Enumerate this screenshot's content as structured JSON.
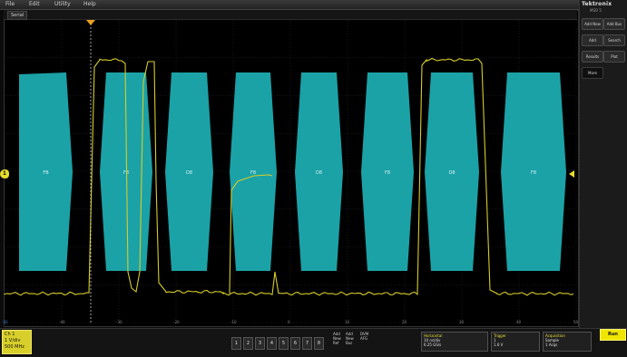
{
  "menubar": {
    "items": [
      {
        "label": "File"
      },
      {
        "label": "Edit"
      },
      {
        "label": "Utility"
      },
      {
        "label": "Help"
      }
    ]
  },
  "tab": {
    "label": "Serial"
  },
  "brand": {
    "name": "Tektronix",
    "model": "MSO 5"
  },
  "right_panel": {
    "buttons": [
      {
        "label": "Add New Math"
      },
      {
        "label": "Add Bus"
      },
      {
        "label": "Add Measure"
      },
      {
        "label": "Search"
      },
      {
        "label": "Results Table"
      },
      {
        "label": "Plot"
      },
      {
        "label": "More"
      }
    ]
  },
  "bus_packets": [
    {
      "label": "FB"
    },
    {
      "label": "F8"
    },
    {
      "label": "D8"
    },
    {
      "label": "F8"
    },
    {
      "label": "D8"
    },
    {
      "label": "F8"
    },
    {
      "label": "D8"
    },
    {
      "label": "F8"
    }
  ],
  "channel_marker": {
    "label": "1"
  },
  "time_labels": [
    "-50",
    "-40",
    "-30",
    "-20",
    "-10",
    "0",
    "10",
    "20",
    "30",
    "40",
    "50"
  ],
  "bottom": {
    "ch1": {
      "title": "Ch 1",
      "scale": "1 V/div",
      "bandwidth": "500 MHz"
    },
    "digit_buttons": [
      "1",
      "2",
      "3",
      "4",
      "5",
      "6",
      "7",
      "8"
    ],
    "info_columns": [
      {
        "lines": [
          "Add",
          "New",
          "Ref"
        ]
      },
      {
        "lines": [
          "Add",
          "New",
          "Bus"
        ]
      },
      {
        "lines": [
          "DVM",
          "AFG"
        ]
      }
    ],
    "horizontal": {
      "title": "Horizontal",
      "scale": "10 ns/div",
      "rate": "6.25 GS/s"
    },
    "trigger": {
      "title": "Trigger",
      "source": "1",
      "level": "1.6 V"
    },
    "acquisition": {
      "title": "Acquisition",
      "mode": "Sample",
      "count": "1 Acqs"
    },
    "run_label": "Run"
  },
  "colors": {
    "trace": "#d6cc2a",
    "bus": "#1ba2a6",
    "accent": "#efe500",
    "grid": "#3a3a3a"
  }
}
